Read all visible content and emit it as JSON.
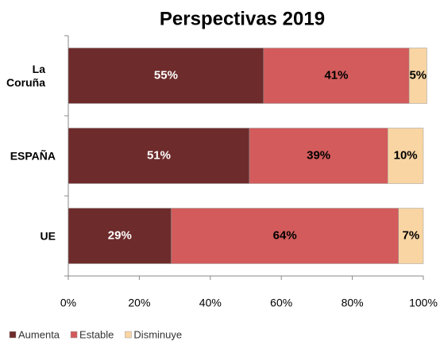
{
  "chart_data": {
    "type": "bar",
    "orientation": "horizontal",
    "stacked": true,
    "title": "Perspectivas 2019",
    "categories": [
      "La Coruña",
      "ESPAÑA",
      "UE"
    ],
    "series": [
      {
        "name": "Aumenta",
        "color": "#6e2b2b",
        "values": [
          55,
          51,
          29
        ],
        "value_labels": [
          "55%",
          "51%",
          "29%"
        ]
      },
      {
        "name": "Estable",
        "color": "#d35b5b",
        "values": [
          41,
          39,
          64
        ],
        "value_labels": [
          "41%",
          "39%",
          "64%"
        ]
      },
      {
        "name": "Disminuye",
        "color": "#f9d5a3",
        "values": [
          5,
          10,
          7
        ],
        "value_labels": [
          "5%",
          "10%",
          "7%"
        ]
      }
    ],
    "xlim": [
      0,
      100
    ],
    "xticks": [
      {
        "value": 0,
        "label": "0%"
      },
      {
        "value": 20,
        "label": "20%"
      },
      {
        "value": 40,
        "label": "40%"
      },
      {
        "value": 60,
        "label": "60%"
      },
      {
        "value": 80,
        "label": "80%"
      },
      {
        "value": 100,
        "label": "100%"
      }
    ],
    "legend": "bottom-left"
  }
}
